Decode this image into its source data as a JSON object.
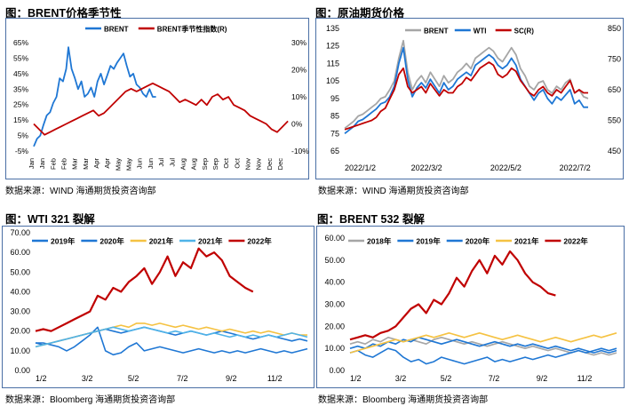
{
  "panels": {
    "p1": {
      "title": "图：BRENT价格季节性",
      "source": "数据来源：WIND   海通期货投资咨询部"
    },
    "p2": {
      "title": "图：原油期货价格",
      "source": "数据来源：WIND   海通期货投资咨询部"
    },
    "p3": {
      "title": "图：WTI 321 裂解",
      "source": "数据来源：Bloomberg   海通期货投资咨询部"
    },
    "p4": {
      "title": "图：BRENT 532 裂解",
      "source": "数据来源：Bloomberg   海通期货投资咨询部"
    }
  },
  "colors": {
    "red": "#c00000",
    "blue": "#1f77d4",
    "lightblue": "#4fb3e8",
    "gray": "#a6a6a6",
    "yellow": "#f5c242",
    "frame": "#4a6fa5"
  },
  "chart_data": [
    {
      "id": "c1",
      "type": "line",
      "title": "BRENT价格季节性",
      "x": [
        "Jan",
        "Jan",
        "Feb",
        "Feb",
        "Mar",
        "Mar",
        "Apr",
        "Apr",
        "May",
        "May",
        "Jun",
        "Jun",
        "Jul",
        "Jul",
        "Aug",
        "Aug",
        "Sep",
        "Sep",
        "Oct",
        "Oct",
        "Nov",
        "Nov",
        "Dec",
        "Dec"
      ],
      "ylim_left": [
        -5,
        65
      ],
      "yticks_left": [
        "65%",
        "55%",
        "45%",
        "35%",
        "25%",
        "15%",
        "5%",
        "-5%"
      ],
      "ylim_right": [
        -10,
        30
      ],
      "yticks_right": [
        "30%",
        "20%",
        "10%",
        "0%",
        "-10%"
      ],
      "legend": [
        "BRENT",
        "BRENT季节性指数(R)"
      ],
      "series": [
        {
          "name": "BRENT",
          "axis": "left",
          "color": "blue",
          "x": [
            0,
            0.3,
            0.6,
            0.9,
            1.2,
            1.5,
            1.8,
            2.1,
            2.4,
            2.7,
            3.0,
            3.2,
            3.5,
            3.8,
            4.1,
            4.4,
            4.7,
            5.0,
            5.3,
            5.6,
            5.9,
            6.2,
            6.5,
            6.8,
            7.1,
            7.4,
            7.7,
            8.0,
            8.3,
            8.6,
            8.9,
            9.2,
            9.5,
            9.8,
            10.1,
            10.4,
            10.7,
            11.0,
            11.3
          ],
          "values": [
            -2,
            3,
            5,
            12,
            18,
            20,
            26,
            30,
            42,
            40,
            48,
            62,
            48,
            42,
            35,
            40,
            30,
            32,
            36,
            30,
            40,
            45,
            38,
            44,
            50,
            48,
            52,
            55,
            58,
            50,
            43,
            45,
            38,
            36,
            32,
            30,
            35,
            30,
            30
          ]
        },
        {
          "name": "BRENT季节性指数(R)",
          "axis": "right",
          "color": "red",
          "x": [
            0,
            0.5,
            1,
            1.5,
            2,
            2.5,
            3,
            3.5,
            4,
            4.5,
            5,
            5.5,
            6,
            6.5,
            7,
            7.5,
            8,
            8.5,
            9,
            9.5,
            10,
            10.5,
            11,
            11.5,
            12,
            12.5,
            13,
            13.5,
            14,
            14.5,
            15,
            15.5,
            16,
            16.5,
            17,
            17.5,
            18,
            18.5,
            19,
            19.5,
            20,
            20.5,
            21,
            21.5,
            22,
            22.5,
            23,
            23.5
          ],
          "values": [
            0,
            -2,
            -4,
            -3,
            -2,
            -1,
            0,
            1,
            2,
            3,
            4,
            5,
            3,
            4,
            6,
            8,
            10,
            12,
            13,
            12,
            13,
            14,
            15,
            14,
            13,
            12,
            10,
            8,
            9,
            8,
            7,
            9,
            7,
            10,
            11,
            9,
            10,
            7,
            6,
            5,
            3,
            2,
            1,
            0,
            -2,
            -3,
            -1,
            1
          ]
        }
      ]
    },
    {
      "id": "c2",
      "type": "line",
      "title": "原油期货价格",
      "x_ticks": [
        "2022/1/2",
        "2022/3/2",
        "2022/5/2",
        "2022/7/2"
      ],
      "ylim_left": [
        65,
        135
      ],
      "yticks_left": [
        "135",
        "125",
        "115",
        "105",
        "95",
        "85",
        "75",
        "65"
      ],
      "ylim_right": [
        450,
        850
      ],
      "yticks_right": [
        "850",
        "750",
        "650",
        "550",
        "450"
      ],
      "legend": [
        "BRENT",
        "WTI",
        "SC(R)"
      ],
      "series": [
        {
          "name": "BRENT",
          "axis": "left",
          "color": "gray",
          "values": [
            78,
            80,
            82,
            85,
            86,
            88,
            90,
            92,
            95,
            96,
            100,
            105,
            118,
            128,
            110,
            100,
            105,
            108,
            104,
            110,
            106,
            102,
            108,
            104,
            106,
            110,
            112,
            115,
            112,
            118,
            120,
            122,
            124,
            122,
            118,
            116,
            120,
            124,
            120,
            112,
            108,
            102,
            100,
            104,
            105,
            100,
            98,
            102,
            100,
            104,
            106,
            98,
            100,
            96,
            95
          ]
        },
        {
          "name": "WTI",
          "axis": "left",
          "color": "blue",
          "values": [
            75,
            77,
            79,
            82,
            83,
            85,
            87,
            89,
            92,
            93,
            96,
            102,
            115,
            124,
            106,
            96,
            101,
            104,
            101,
            106,
            102,
            98,
            104,
            100,
            102,
            106,
            108,
            110,
            108,
            114,
            116,
            118,
            120,
            118,
            114,
            112,
            114,
            118,
            114,
            106,
            102,
            98,
            94,
            98,
            100,
            95,
            92,
            96,
            94,
            97,
            100,
            92,
            94,
            90,
            90
          ]
        },
        {
          "name": "SC(R)",
          "axis": "right",
          "color": "red",
          "values": [
            520,
            525,
            530,
            535,
            540,
            545,
            550,
            560,
            580,
            590,
            620,
            650,
            700,
            720,
            660,
            640,
            650,
            660,
            640,
            670,
            650,
            630,
            650,
            640,
            640,
            660,
            670,
            690,
            680,
            700,
            720,
            730,
            740,
            730,
            700,
            690,
            700,
            720,
            710,
            680,
            660,
            640,
            630,
            650,
            660,
            640,
            630,
            650,
            640,
            660,
            680,
            640,
            650,
            640,
            640
          ]
        }
      ]
    },
    {
      "id": "c3",
      "type": "line",
      "title": "WTI 321 裂解",
      "x_ticks": [
        "1/2",
        "3/2",
        "5/2",
        "7/2",
        "9/2",
        "11/2"
      ],
      "ylim": [
        0,
        70
      ],
      "yticks": [
        "70.00",
        "60.00",
        "50.00",
        "40.00",
        "30.00",
        "20.00",
        "10.00",
        "0.00"
      ],
      "legend": [
        "2019年",
        "2020年",
        "2021年",
        "2021年",
        "2022年"
      ],
      "series": [
        {
          "name": "2019年",
          "color": "blue",
          "values": [
            14,
            13,
            14,
            15,
            16,
            17,
            18,
            19,
            20,
            21,
            20,
            19,
            20,
            21,
            22,
            21,
            20,
            19,
            18,
            19,
            20,
            19,
            18,
            19,
            20,
            19,
            18,
            17,
            16,
            17,
            18,
            17,
            16,
            15,
            16,
            15
          ]
        },
        {
          "name": "2020年",
          "color": "blue",
          "values": [
            14,
            14,
            13,
            12,
            10,
            12,
            15,
            18,
            22,
            10,
            8,
            9,
            12,
            14,
            10,
            11,
            12,
            11,
            10,
            9,
            10,
            11,
            10,
            9,
            10,
            9,
            10,
            9,
            10,
            11,
            10,
            9,
            10,
            9,
            10,
            11
          ]
        },
        {
          "name": "2021年",
          "color": "yellow",
          "values": [
            12,
            13,
            14,
            15,
            16,
            17,
            18,
            19,
            20,
            21,
            22,
            23,
            22,
            24,
            24,
            23,
            24,
            23,
            22,
            23,
            22,
            21,
            22,
            21,
            20,
            21,
            20,
            19,
            20,
            19,
            20,
            19,
            18,
            19,
            18,
            18
          ]
        },
        {
          "name": "2021年",
          "color": "lightblue",
          "values": [
            12,
            13,
            14,
            15,
            16,
            17,
            18,
            19,
            20,
            21,
            22,
            21,
            20,
            21,
            22,
            21,
            20,
            19,
            20,
            19,
            20,
            19,
            18,
            19,
            18,
            17,
            18,
            17,
            18,
            17,
            18,
            17,
            18,
            19,
            18,
            17
          ]
        },
        {
          "name": "2022年",
          "color": "red",
          "values": [
            20,
            21,
            20,
            22,
            24,
            26,
            28,
            30,
            38,
            36,
            42,
            40,
            45,
            48,
            52,
            44,
            50,
            58,
            48,
            55,
            52,
            62,
            58,
            60,
            56,
            48,
            45,
            42,
            40
          ]
        }
      ]
    },
    {
      "id": "c4",
      "type": "line",
      "title": "BRENT 532 裂解",
      "x_ticks": [
        "1/2",
        "3/2",
        "5/2",
        "7/2",
        "9/2",
        "11/2"
      ],
      "ylim": [
        0,
        60
      ],
      "yticks": [
        "60.00",
        "50.00",
        "40.00",
        "30.00",
        "20.00",
        "10.00",
        "0.00"
      ],
      "legend": [
        "2018年",
        "2019年",
        "2020年",
        "2021年",
        "2022年"
      ],
      "series": [
        {
          "name": "2018年",
          "color": "gray",
          "values": [
            12,
            13,
            12,
            14,
            13,
            15,
            14,
            13,
            14,
            13,
            12,
            14,
            15,
            14,
            13,
            12,
            13,
            12,
            11,
            12,
            13,
            12,
            11,
            10,
            11,
            10,
            9,
            10,
            9,
            8,
            9,
            8,
            7,
            8,
            7,
            8
          ]
        },
        {
          "name": "2019年",
          "color": "blue",
          "values": [
            10,
            11,
            10,
            12,
            11,
            13,
            12,
            14,
            13,
            15,
            14,
            13,
            12,
            13,
            14,
            13,
            12,
            11,
            12,
            13,
            12,
            11,
            12,
            11,
            12,
            11,
            10,
            11,
            10,
            9,
            10,
            9,
            8,
            9,
            8,
            9
          ]
        },
        {
          "name": "2020年",
          "color": "blue",
          "values": [
            8,
            9,
            7,
            6,
            8,
            10,
            9,
            6,
            4,
            5,
            3,
            4,
            6,
            5,
            4,
            3,
            4,
            5,
            6,
            4,
            5,
            4,
            5,
            6,
            5,
            6,
            7,
            6,
            7,
            8,
            9,
            8,
            9,
            10,
            9,
            10
          ]
        },
        {
          "name": "2021年",
          "color": "yellow",
          "values": [
            8,
            9,
            10,
            11,
            12,
            13,
            14,
            13,
            14,
            15,
            16,
            15,
            16,
            17,
            16,
            15,
            16,
            17,
            16,
            15,
            14,
            15,
            16,
            15,
            14,
            13,
            14,
            15,
            14,
            13,
            14,
            15,
            16,
            15,
            16,
            17
          ]
        },
        {
          "name": "2022年",
          "color": "red",
          "values": [
            14,
            15,
            16,
            15,
            17,
            18,
            20,
            24,
            28,
            30,
            26,
            32,
            30,
            35,
            42,
            38,
            45,
            50,
            44,
            52,
            48,
            54,
            50,
            44,
            40,
            38,
            35,
            34
          ]
        }
      ]
    }
  ]
}
